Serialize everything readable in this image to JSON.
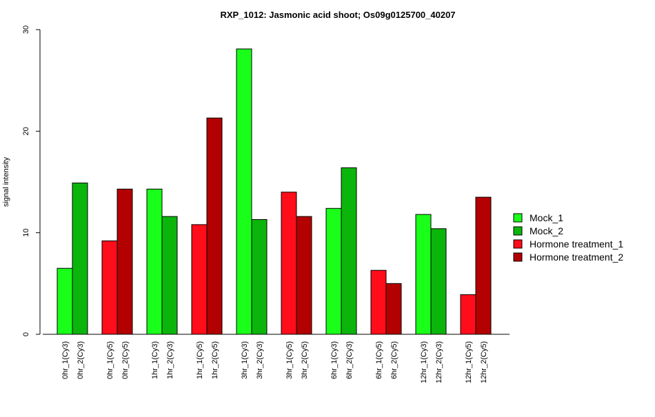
{
  "chart_data": {
    "type": "bar",
    "title": "RXP_1012: Jasmonic acid shoot; Os09g0125700_40207",
    "ylabel": "signal intensity",
    "xlabel": "",
    "ylim": [
      0,
      30
    ],
    "yticks": [
      "0",
      "10",
      "20",
      "30"
    ],
    "grid": false,
    "legend_position": "right",
    "legend": [
      {
        "name": "Mock_1",
        "color": "#1aff1a"
      },
      {
        "name": "Mock_2",
        "color": "#0cb50c"
      },
      {
        "name": "Hormone treatment_1",
        "color": "#ff0d1a"
      },
      {
        "name": "Hormone treatment_2",
        "color": "#b30000"
      }
    ],
    "bars": [
      {
        "label": "0hr_1(Cy3)",
        "value": 6.5,
        "series": 0
      },
      {
        "label": "0hr_2(Cy3)",
        "value": 14.9,
        "series": 1
      },
      {
        "label": "0hr_1(Cy5)",
        "value": 9.2,
        "series": 2
      },
      {
        "label": "0hr_2(Cy5)",
        "value": 14.3,
        "series": 3
      },
      {
        "label": "1hr_1(Cy3)",
        "value": 14.3,
        "series": 0
      },
      {
        "label": "1hr_2(Cy3)",
        "value": 11.6,
        "series": 1
      },
      {
        "label": "1hr_1(Cy5)",
        "value": 10.8,
        "series": 2
      },
      {
        "label": "1hr_2(Cy5)",
        "value": 21.3,
        "series": 3
      },
      {
        "label": "3hr_1(Cy3)",
        "value": 28.1,
        "series": 0
      },
      {
        "label": "3hr_2(Cy3)",
        "value": 11.3,
        "series": 1
      },
      {
        "label": "3hr_1(Cy5)",
        "value": 14.0,
        "series": 2
      },
      {
        "label": "3hr_2(Cy5)",
        "value": 11.6,
        "series": 3
      },
      {
        "label": "6hr_1(Cy3)",
        "value": 12.4,
        "series": 0
      },
      {
        "label": "6hr_2(Cy3)",
        "value": 16.4,
        "series": 1
      },
      {
        "label": "6hr_1(Cy5)",
        "value": 6.3,
        "series": 2
      },
      {
        "label": "6hr_2(Cy5)",
        "value": 5.0,
        "series": 3
      },
      {
        "label": "12hr_1(Cy3)",
        "value": 11.8,
        "series": 0
      },
      {
        "label": "12hr_2(Cy3)",
        "value": 10.4,
        "series": 1
      },
      {
        "label": "12hr_1(Cy5)",
        "value": 3.9,
        "series": 2
      },
      {
        "label": "12hr_2(Cy5)",
        "value": 13.5,
        "series": 3
      }
    ]
  }
}
